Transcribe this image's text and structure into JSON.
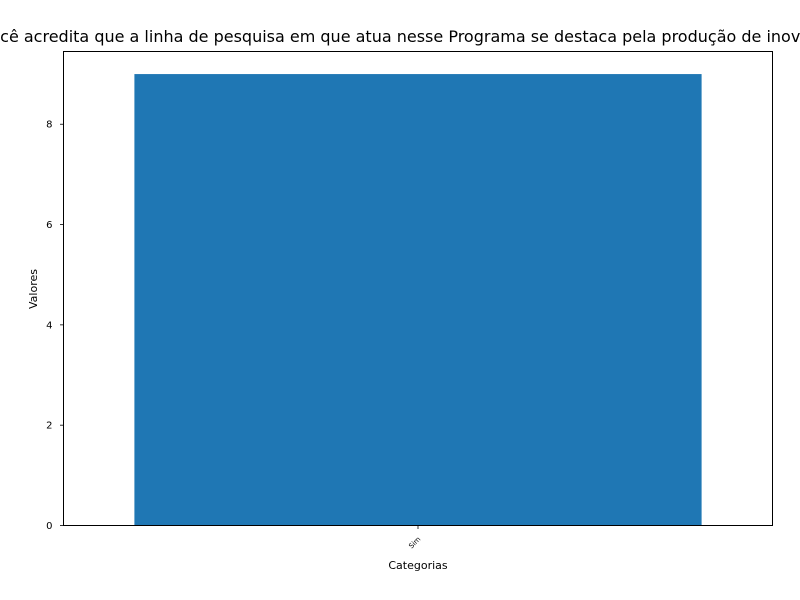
{
  "chart_data": {
    "type": "bar",
    "title": "Você acredita que a linha de pesquisa em que atua nesse Programa se destaca pela produção de inovações?",
    "xlabel": "Categorias",
    "ylabel": "Valores",
    "categories": [
      "Sim"
    ],
    "values": [
      9
    ],
    "ylim": [
      0,
      9.45
    ],
    "yticks": [
      0,
      2,
      4,
      6,
      8
    ],
    "grid": false,
    "bar_color": "#1f77b4"
  }
}
